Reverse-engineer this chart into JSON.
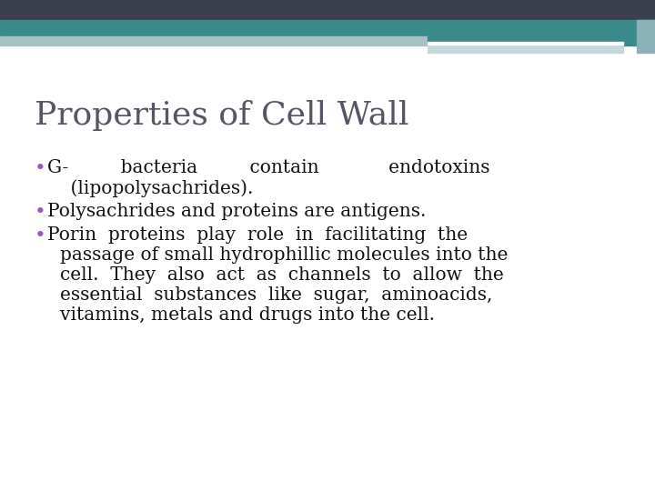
{
  "title": "Properties of Cell Wall",
  "title_fontsize": 26,
  "title_color": "#555566",
  "title_font": "DejaVu Serif",
  "bullet_color": "#9b59b6",
  "text_color": "#111111",
  "text_fontsize": 14.5,
  "text_font": "DejaVu Serif",
  "background_color": "#ffffff",
  "header_dark_color": "#3b3f4e",
  "header_teal_color": "#3a8a8c",
  "header_light1_color": "#a8bfc4",
  "header_light2_color": "#c5d8dc",
  "header_right_accent": "#8ab0b8",
  "bullet1_line1": "G-         bacteria         contain            endotoxins",
  "bullet1_line2": "    (lipopolysachrides).",
  "bullet2": "Polysachrides and proteins are antigens.",
  "bullet3_lines": [
    "Porin  proteins  play  role  in  facilitating  the",
    "passage of small hydrophillic molecules into the",
    "cell.  They  also  act  as  channels  to  allow  the",
    "essential  substances  like  sugar,  aminoacids,",
    "vitamins, metals and drugs into the cell."
  ]
}
